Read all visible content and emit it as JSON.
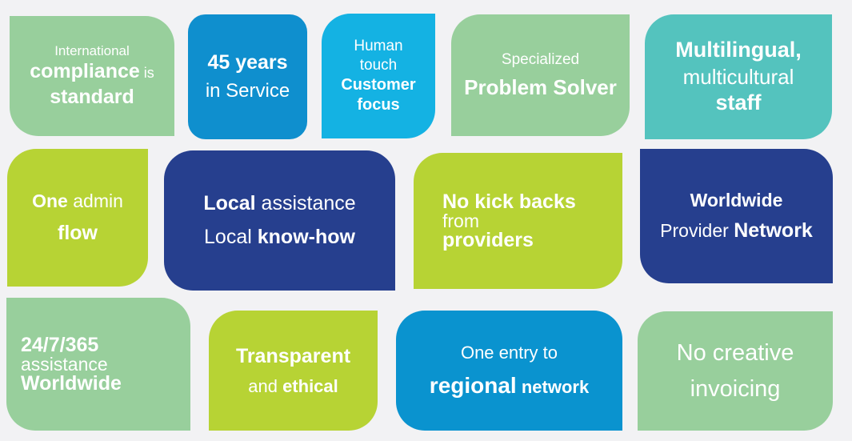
{
  "tiles": {
    "t1": {
      "l1": "International",
      "l2a": "compliance",
      "l2b": " is",
      "l3": "standard",
      "color": "#98cf9c"
    },
    "t2": {
      "l1": "45 years",
      "l2": "in Service",
      "color": "#0f8fce"
    },
    "t3": {
      "l1": "Human",
      "l2": "touch",
      "l3": "Customer",
      "l4": "focus",
      "color": "#14b2e3"
    },
    "t4": {
      "l1": "Specialized",
      "l2": "Problem Solver",
      "color": "#98cf9c"
    },
    "t5": {
      "l1": "Multilingual,",
      "l2": "multicultural",
      "l3": "staff",
      "color": "#54c3be"
    },
    "t6": {
      "l1a": "One",
      "l1b": " admin",
      "l2": "flow",
      "color": "#b7d334"
    },
    "t7": {
      "l1a": "Local",
      "l1b": " assistance",
      "l2a": "Local ",
      "l2b": "know-how",
      "color": "#263f8e"
    },
    "t8": {
      "l1": "No kick backs",
      "l2": "from",
      "l3": "providers",
      "color": "#b7d334"
    },
    "t9": {
      "l1": "Worldwide",
      "l2a": "Provider ",
      "l2b": "Network",
      "color": "#263f8e"
    },
    "t10": {
      "l1": "24/7/365",
      "l2": "assistance",
      "l3": "Worldwide",
      "color": "#98cf9c"
    },
    "t11": {
      "l1": "Transparent",
      "l2a": "and ",
      "l2b": "ethical",
      "color": "#b7d334"
    },
    "t12": {
      "l1": "One entry to",
      "l2a": "regional",
      "l2b": " network",
      "color": "#0a93cf"
    },
    "t13": {
      "l1": "No creative",
      "l2": "invoicing",
      "color": "#98cf9c"
    }
  }
}
